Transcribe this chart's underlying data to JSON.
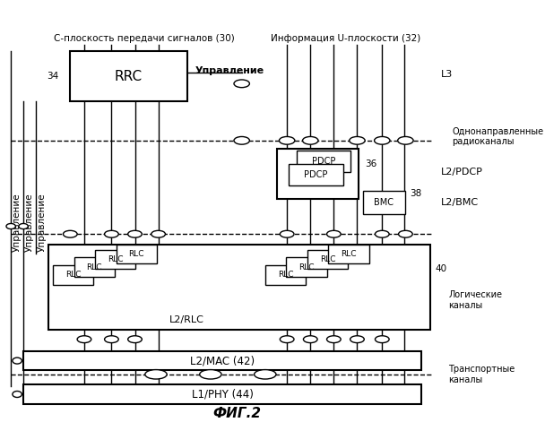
{
  "title": "ФИГ.2",
  "background_color": "#ffffff",
  "text_color": "#000000",
  "labels": {
    "c_plane": "С-плоскость передачи сигналов (30)",
    "u_plane": "Информация U-плоскости (32)",
    "l3": "L3",
    "unidirectional": "Однонаправленные\nрадиоканалы",
    "l2_pdcp": "L2/PDCP",
    "l2_bmc": "L2/BMC",
    "l2_rlc": "L2/RLC",
    "logical": "Логические\nканалы",
    "transport": "Транспортные\nканалы",
    "rrc": "RRC",
    "control1": "Управление",
    "control_v1": "Управление",
    "control_v2": "Управление",
    "control_v3": "Управление",
    "pdcp1": "PDCP",
    "pdcp2": "PDCP",
    "bmc": "BMC",
    "rlc": "RLC",
    "l2mac": "L2/MAC (42)",
    "l1phy": "L1/PHY (44)",
    "ref34": "34",
    "ref36": "36",
    "ref38": "38",
    "ref40": "40"
  },
  "figsize": [
    6.08,
    5.0
  ],
  "dpi": 100
}
